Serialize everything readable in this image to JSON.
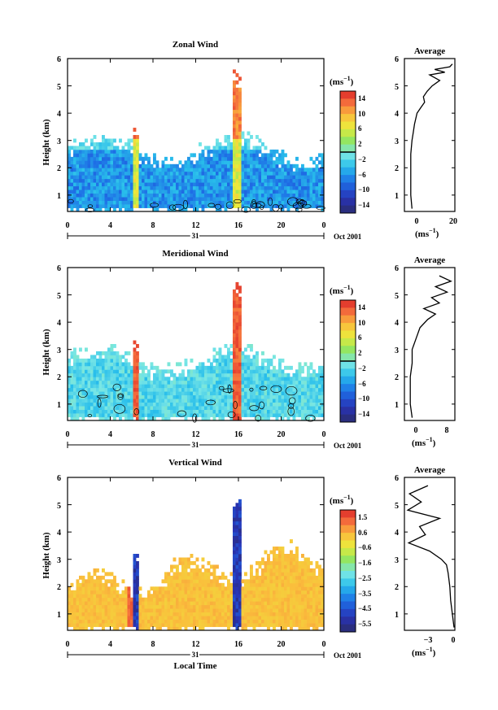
{
  "chart_data": [
    {
      "type": "heatmap",
      "title": "Zonal Wind",
      "ylabel": "Height (km)",
      "xlabel": "",
      "x_ticks": [
        "0",
        "4",
        "8",
        "12",
        "16",
        "20",
        "0"
      ],
      "y_ticks": [
        "1",
        "2",
        "3",
        "4",
        "5",
        "6"
      ],
      "xlim": [
        0,
        24
      ],
      "ylim": [
        0.4,
        6
      ],
      "date_day": "31",
      "date_month": "Oct 2001",
      "colorbar": {
        "unit": "(ms",
        "unit_sup": "−1",
        "unit_close": ")",
        "labels": [
          "14",
          "10",
          "6",
          "2",
          "−2",
          "−6",
          "−10",
          "−14"
        ],
        "range": [
          -16,
          16
        ],
        "zero_line": 0
      },
      "profile": {
        "title": "Average",
        "x_ticks": [
          "0",
          "20"
        ],
        "xlim": [
          -10,
          30
        ],
        "xlabel_unit": "(ms",
        "xlabel_sup": "−1",
        "xlabel_close": ")",
        "heights": [
          0.5,
          1.0,
          1.5,
          2.0,
          2.5,
          3.0,
          3.3,
          3.6,
          4.0,
          4.2,
          4.4,
          4.6,
          4.8,
          5.0,
          5.2,
          5.4,
          5.5,
          5.6,
          5.7,
          5.8
        ],
        "values": [
          -4,
          -5,
          -5,
          -5,
          -5,
          -4,
          -3,
          -2,
          0,
          3,
          6,
          5,
          8,
          12,
          18,
          10,
          22,
          14,
          26,
          28
        ]
      }
    },
    {
      "type": "heatmap",
      "title": "Meridional Wind",
      "ylabel": "Height (km)",
      "xlabel": "",
      "x_ticks": [
        "0",
        "4",
        "8",
        "12",
        "16",
        "20",
        "0"
      ],
      "y_ticks": [
        "1",
        "2",
        "3",
        "4",
        "5",
        "6"
      ],
      "xlim": [
        0,
        24
      ],
      "ylim": [
        0.4,
        6
      ],
      "date_day": "31",
      "date_month": "Oct 2001",
      "colorbar": {
        "unit": "(ms",
        "unit_sup": "−1",
        "unit_close": ")",
        "labels": [
          "14",
          "10",
          "6",
          "2",
          "−2",
          "−6",
          "−10",
          "−14"
        ],
        "range": [
          -16,
          16
        ],
        "zero_line": 0
      },
      "profile": {
        "title": "Average",
        "x_ticks": [
          "0",
          "8"
        ],
        "xlim": [
          -3,
          10
        ],
        "xlabel_unit": "(ms",
        "xlabel_sup": "−1",
        "xlabel_close": ")",
        "heights": [
          0.5,
          1.0,
          1.5,
          2.0,
          2.5,
          3.0,
          3.4,
          3.8,
          4.1,
          4.3,
          4.5,
          4.7,
          4.9,
          5.1,
          5.3,
          5.5,
          5.7
        ],
        "values": [
          -1,
          -1.5,
          -1.5,
          -1.5,
          -1,
          -1,
          0,
          1,
          3,
          5,
          2,
          6,
          4,
          8,
          5,
          9,
          6
        ]
      }
    },
    {
      "type": "heatmap",
      "title": "Vertical Wind",
      "ylabel": "Height (km)",
      "xlabel": "Local Time",
      "x_ticks": [
        "0",
        "4",
        "8",
        "12",
        "16",
        "20",
        "0"
      ],
      "y_ticks": [
        "1",
        "2",
        "3",
        "4",
        "5",
        "6"
      ],
      "xlim": [
        0,
        24
      ],
      "ylim": [
        0.4,
        6
      ],
      "date_day": "31",
      "date_month": "Oct 2001",
      "colorbar": {
        "unit": "(ms",
        "unit_sup": "−1",
        "unit_close": ")",
        "labels": [
          "1.5",
          "0.6",
          "−0.6",
          "−1.6",
          "−2.5",
          "−3.5",
          "−4.5",
          "−5.5"
        ],
        "range": [
          -6,
          2
        ]
      },
      "profile": {
        "title": "Average",
        "x_ticks": [
          "−3",
          "0"
        ],
        "xlim": [
          -6,
          0
        ],
        "xlabel_unit": "(ms",
        "xlabel_sup": "−1",
        "xlabel_close": ")",
        "heights": [
          0.5,
          1.0,
          1.5,
          2.0,
          2.5,
          2.8,
          3.0,
          3.3,
          3.6,
          3.9,
          4.2,
          4.5,
          4.8,
          5.1,
          5.4,
          5.7
        ],
        "values": [
          -0.1,
          -0.3,
          -0.5,
          -0.6,
          -0.8,
          -1.0,
          -1.6,
          -3.0,
          -5.5,
          -3.5,
          -4.2,
          -1.8,
          -5.6,
          -4.0,
          -5.4,
          -3.2
        ]
      }
    }
  ]
}
